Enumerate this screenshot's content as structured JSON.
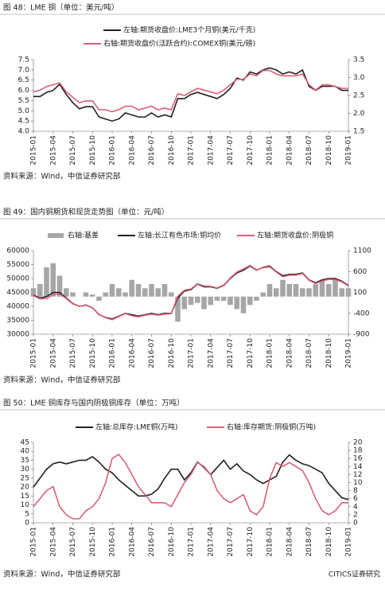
{
  "chart_data": [
    {
      "type": "line",
      "title": "图 48：LME 铜（单位：美元/吨）",
      "source": "资料来源：Wind，中信证券研究部",
      "x": [
        "2015-01",
        "2015-02",
        "2015-03",
        "2015-04",
        "2015-05",
        "2015-06",
        "2015-07",
        "2015-08",
        "2015-09",
        "2015-10",
        "2015-11",
        "2015-12",
        "2016-01",
        "2016-02",
        "2016-03",
        "2016-04",
        "2016-05",
        "2016-06",
        "2016-07",
        "2016-08",
        "2016-09",
        "2016-10",
        "2016-11",
        "2016-12",
        "2017-01",
        "2017-02",
        "2017-03",
        "2017-04",
        "2017-05",
        "2017-06",
        "2017-07",
        "2017-08",
        "2017-09",
        "2017-10",
        "2017-11",
        "2017-12",
        "2018-01",
        "2018-02",
        "2018-03",
        "2018-04",
        "2018-05",
        "2018-06",
        "2018-07",
        "2018-08",
        "2018-09",
        "2018-10",
        "2018-11",
        "2018-12",
        "2019-01"
      ],
      "ylim": [
        4,
        7.5
      ],
      "yticks": [
        {
          "value": 4,
          "label": "4.0"
        },
        4.5,
        {
          "value": 5,
          "label": "5.0"
        },
        5.5,
        {
          "value": 6,
          "label": "6.0"
        },
        6.5,
        {
          "value": 7,
          "label": "7.0"
        },
        7.5
      ],
      "y2lim": [
        1.5,
        3.5
      ],
      "y2ticks": [
        1.5,
        {
          "value": 2,
          "label": "2.0"
        },
        2.5,
        {
          "value": 3,
          "label": "3.0"
        },
        3.5
      ],
      "series": [
        {
          "name": "左轴:期货收盘价:LME3个月铜(美元/千克)",
          "color": "#231f20",
          "values": [
            5.7,
            5.7,
            5.9,
            6.0,
            6.3,
            5.8,
            5.4,
            5.1,
            5.2,
            5.2,
            4.7,
            4.6,
            4.5,
            4.6,
            4.9,
            4.8,
            4.7,
            4.7,
            4.9,
            4.7,
            4.8,
            4.7,
            5.6,
            5.6,
            5.8,
            5.9,
            5.8,
            5.7,
            5.6,
            5.8,
            6.1,
            6.6,
            6.5,
            6.9,
            6.8,
            7.0,
            7.1,
            7.0,
            6.8,
            6.9,
            6.8,
            7.0,
            6.2,
            6.0,
            6.2,
            6.2,
            6.2,
            6.0,
            6.0
          ]
        },
        {
          "name": "右轴:期货收盘价(活跃合约):COMEX铜(美元/磅)",
          "color": "#d9607a",
          "axis": "y2",
          "values": [
            2.6,
            2.65,
            2.75,
            2.8,
            2.85,
            2.6,
            2.45,
            2.3,
            2.35,
            2.35,
            2.1,
            2.1,
            2.05,
            2.1,
            2.2,
            2.2,
            2.1,
            2.15,
            2.2,
            2.1,
            2.15,
            2.1,
            2.55,
            2.5,
            2.6,
            2.7,
            2.65,
            2.6,
            2.55,
            2.65,
            2.8,
            2.95,
            2.95,
            3.1,
            3.05,
            3.2,
            3.2,
            3.1,
            3.05,
            3.05,
            3.05,
            3.1,
            2.8,
            2.65,
            2.8,
            2.8,
            2.75,
            2.7,
            2.7
          ]
        }
      ]
    },
    {
      "type": "line",
      "title": "图 49：国内铜期货和现货走势图（单位：元/吨）",
      "source": "资料来源：Wind，中信证券研究部",
      "x": [
        "2015-01",
        "2015-02",
        "2015-03",
        "2015-04",
        "2015-05",
        "2015-06",
        "2015-07",
        "2015-08",
        "2015-09",
        "2015-10",
        "2015-11",
        "2015-12",
        "2016-01",
        "2016-02",
        "2016-03",
        "2016-04",
        "2016-05",
        "2016-06",
        "2016-07",
        "2016-08",
        "2016-09",
        "2016-10",
        "2016-11",
        "2016-12",
        "2017-01",
        "2017-02",
        "2017-03",
        "2017-04",
        "2017-05",
        "2017-06",
        "2017-07",
        "2017-08",
        "2017-09",
        "2017-10",
        "2017-11",
        "2017-12",
        "2018-01",
        "2018-02",
        "2018-03",
        "2018-04",
        "2018-05",
        "2018-06",
        "2018-07",
        "2018-08",
        "2018-09",
        "2018-10",
        "2018-11",
        "2018-12",
        "2019-01"
      ],
      "ylim": [
        30000,
        60000
      ],
      "yticks": [
        30000,
        35000,
        40000,
        45000,
        50000,
        55000,
        60000
      ],
      "y2lim": [
        -900,
        1100
      ],
      "y2ticks": [
        -900,
        -400,
        100,
        600,
        1100
      ],
      "series": [
        {
          "name": "右轴:基差",
          "type": "bar",
          "color": "#a6a6a6",
          "axis": "y2",
          "values": [
            200,
            300,
            700,
            800,
            500,
            200,
            100,
            0,
            100,
            50,
            -100,
            100,
            300,
            200,
            100,
            400,
            300,
            200,
            300,
            200,
            300,
            100,
            -600,
            -300,
            -200,
            -150,
            -300,
            -200,
            -100,
            -100,
            -200,
            -300,
            -400,
            -200,
            -100,
            100,
            300,
            200,
            400,
            300,
            300,
            200,
            200,
            300,
            400,
            300,
            400,
            200,
            200
          ]
        },
        {
          "name": "左轴:长江有色市场:铜均价",
          "color": "#231f20",
          "values": [
            44000,
            43000,
            43500,
            45000,
            45000,
            43000,
            41000,
            40000,
            40500,
            39500,
            37000,
            36000,
            35500,
            36500,
            37500,
            37000,
            36500,
            37000,
            37500,
            37000,
            37500,
            37500,
            43000,
            45500,
            46000,
            48000,
            47000,
            47000,
            46500,
            47500,
            50000,
            52000,
            53000,
            54500,
            53000,
            54000,
            54500,
            52500,
            51000,
            51500,
            51500,
            52000,
            49500,
            48500,
            49500,
            50000,
            50000,
            49000,
            47500
          ]
        },
        {
          "name": "左轴:期货收盘价:阴极铜",
          "color": "#d9607a",
          "values": [
            43800,
            42700,
            42800,
            44200,
            44500,
            42800,
            40900,
            40000,
            40400,
            39500,
            37100,
            35900,
            35200,
            36300,
            37400,
            36600,
            36200,
            36800,
            37200,
            36800,
            37200,
            37400,
            43600,
            45800,
            46200,
            48100,
            47300,
            47200,
            46600,
            47600,
            50200,
            52300,
            53400,
            54700,
            53100,
            53900,
            54200,
            52300,
            50600,
            51200,
            51200,
            51800,
            49300,
            48200,
            49100,
            49700,
            49600,
            48800,
            47300
          ]
        }
      ]
    },
    {
      "type": "line",
      "title": "图 50：LME 铜库存与国内阴极铜库存（单位：万吨）",
      "source": "资料来源：Wind，中信证券研究部",
      "x": [
        "2015-01",
        "2015-02",
        "2015-03",
        "2015-04",
        "2015-05",
        "2015-06",
        "2015-07",
        "2015-08",
        "2015-09",
        "2015-10",
        "2015-11",
        "2015-12",
        "2016-01",
        "2016-02",
        "2016-03",
        "2016-04",
        "2016-05",
        "2016-06",
        "2016-07",
        "2016-08",
        "2016-09",
        "2016-10",
        "2016-11",
        "2016-12",
        "2017-01",
        "2017-02",
        "2017-03",
        "2017-04",
        "2017-05",
        "2017-06",
        "2017-07",
        "2017-08",
        "2017-09",
        "2017-10",
        "2017-11",
        "2017-12",
        "2018-01",
        "2018-02",
        "2018-03",
        "2018-04",
        "2018-05",
        "2018-06",
        "2018-07",
        "2018-08",
        "2018-09",
        "2018-10",
        "2018-11",
        "2018-12",
        "2019-01"
      ],
      "ylim": [
        0,
        45
      ],
      "yticks": [
        0,
        5,
        10,
        15,
        20,
        25,
        30,
        35,
        40,
        45
      ],
      "y2lim": [
        0,
        20
      ],
      "y2ticks": [
        0,
        2,
        4,
        6,
        8,
        10,
        12,
        14,
        16,
        18,
        20
      ],
      "series": [
        {
          "name": "左轴:总库存:LME铜(万吨)",
          "color": "#231f20",
          "values": [
            20,
            25,
            30,
            33,
            34,
            33,
            34,
            35,
            35,
            37,
            34,
            30,
            28,
            24,
            21,
            18,
            15,
            15,
            16,
            19,
            25,
            30,
            30,
            24,
            28,
            34,
            31,
            27,
            31,
            35,
            30,
            33,
            29,
            27,
            24,
            22,
            24,
            26,
            34,
            38,
            35,
            33,
            32,
            30,
            28,
            22,
            18,
            14,
            13
          ]
        },
        {
          "name": "右轴:库存期货:阴极铜(万吨)",
          "color": "#d9607a",
          "axis": "y2",
          "values": [
            4,
            6,
            8,
            9,
            4,
            2,
            1,
            1,
            3,
            4,
            6,
            10,
            16,
            17,
            15,
            12,
            9,
            7,
            5,
            5,
            5,
            4,
            7,
            10,
            12,
            15,
            14,
            12,
            8,
            6,
            5,
            6,
            7,
            3,
            2,
            4,
            11,
            15,
            14,
            15,
            14,
            13,
            10,
            6,
            3,
            2,
            3,
            5,
            5
          ]
        }
      ]
    }
  ],
  "watermark": "CITICS证券研究"
}
